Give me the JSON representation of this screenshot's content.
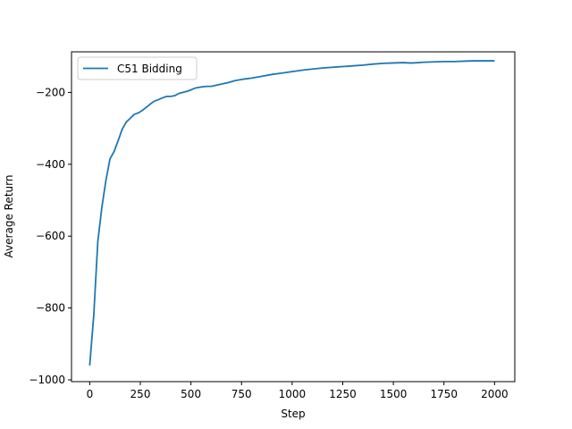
{
  "chart_data": {
    "type": "line",
    "title": "",
    "xlabel": "Step",
    "ylabel": "Average Return",
    "xlim": [
      -90,
      2100
    ],
    "ylim": [
      -1005,
      -87
    ],
    "xticks": [
      0,
      250,
      500,
      750,
      1000,
      1250,
      1500,
      1750,
      2000
    ],
    "yticks": [
      -1000,
      -800,
      -600,
      -400,
      -200
    ],
    "xtick_labels": [
      "0",
      "250",
      "500",
      "750",
      "1000",
      "1250",
      "1500",
      "1750",
      "2000"
    ],
    "ytick_labels": [
      "−1000",
      "−800",
      "−600",
      "−400",
      "−200"
    ],
    "grid": false,
    "legend_position": "top-left",
    "series": [
      {
        "name": "C51 Bidding",
        "color": "#1f77b4",
        "x": [
          0,
          20,
          40,
          60,
          80,
          100,
          120,
          140,
          160,
          180,
          200,
          220,
          240,
          260,
          280,
          300,
          320,
          340,
          360,
          380,
          400,
          420,
          440,
          460,
          480,
          500,
          520,
          540,
          560,
          580,
          600,
          640,
          680,
          720,
          760,
          800,
          850,
          900,
          950,
          1000,
          1050,
          1100,
          1150,
          1200,
          1250,
          1300,
          1350,
          1400,
          1450,
          1500,
          1550,
          1575,
          1600,
          1650,
          1700,
          1750,
          1800,
          1850,
          1900,
          1950,
          2000
        ],
        "y": [
          -960,
          -820,
          -615,
          -520,
          -445,
          -385,
          -365,
          -335,
          -303,
          -283,
          -272,
          -261,
          -257,
          -250,
          -241,
          -232,
          -224,
          -220,
          -215,
          -211,
          -211,
          -209,
          -203,
          -200,
          -197,
          -193,
          -188,
          -186,
          -184,
          -183,
          -183,
          -178,
          -173,
          -167,
          -163,
          -160,
          -155,
          -150,
          -146,
          -142,
          -138,
          -135,
          -132,
          -130,
          -128,
          -126,
          -124,
          -121,
          -119,
          -118,
          -117,
          -118,
          -118,
          -116,
          -115,
          -114,
          -114,
          -113,
          -112,
          -112,
          -112
        ]
      }
    ]
  }
}
